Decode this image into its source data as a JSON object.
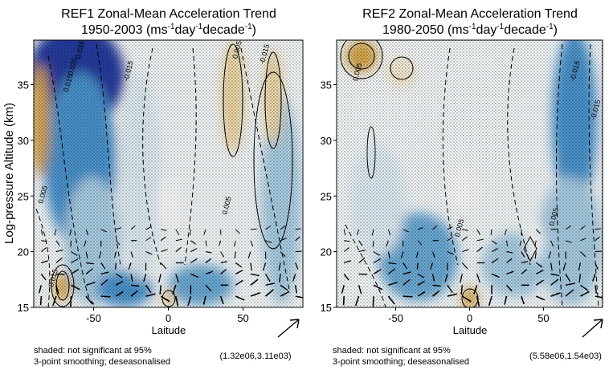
{
  "chart_data": [
    {
      "type": "heatmap",
      "title_line1": "REF1 Zonal-Mean Acceleration Trend",
      "title_line2_prefix": "1950-2003 (ms",
      "units_parts": [
        "-1",
        "day",
        "-1",
        "decade",
        "-1",
        ")"
      ],
      "xlabel": "Laitude",
      "ylabel": "Log-pressure Altitude (km)",
      "xlim": [
        -90,
        90
      ],
      "ylim": [
        15,
        39
      ],
      "xticks": [
        -50,
        0,
        50
      ],
      "xtick_labels": [
        "-50",
        "0",
        "50"
      ],
      "yticks": [
        15,
        20,
        25,
        30,
        35
      ],
      "ytick_labels": [
        "15",
        "20",
        "25",
        "30",
        "35"
      ],
      "contour_labels": [
        {
          "text": "0.005",
          "lat": -84,
          "alt": 24.3
        },
        {
          "text": "0.015",
          "lat": -67,
          "alt": 34.3
        },
        {
          "text": "0.025",
          "lat": -64,
          "alt": 35.8
        },
        {
          "text": "0.035",
          "lat": -59,
          "alt": 37.3
        },
        {
          "text": "-0.015",
          "lat": -27,
          "alt": 35.3
        },
        {
          "text": "0.005",
          "lat": 46,
          "alt": 37.3
        },
        {
          "text": "-0.015",
          "lat": 64,
          "alt": 36.8
        },
        {
          "text": "0.005",
          "lat": 39,
          "alt": 23.3
        },
        {
          "text": "0.015",
          "lat": -77,
          "alt": 16.8
        }
      ],
      "reference_arrow_label": "(1.32e06,3.11e03)",
      "notes": [
        "shaded: not significant at 95%",
        "3-point smoothing; deseasonalised"
      ]
    },
    {
      "type": "heatmap",
      "title_line1": "REF2 Zonal-Mean Acceleration Trend",
      "title_line2_prefix": "1980-2050 (ms",
      "units_parts": [
        "-1",
        "day",
        "-1",
        "decade",
        "-1",
        ")"
      ],
      "xlabel": "Laitude",
      "ylabel": "",
      "xlim": [
        -90,
        90
      ],
      "ylim": [
        15,
        39
      ],
      "xticks": [
        -50,
        0,
        50
      ],
      "xtick_labels": [
        "-50",
        "0",
        "50"
      ],
      "yticks": [
        15,
        20,
        25,
        30,
        35
      ],
      "ytick_labels": [
        "15",
        "20",
        "25",
        "30",
        "35"
      ],
      "contour_labels": [
        {
          "text": "0.005",
          "lat": -76,
          "alt": 35.3
        },
        {
          "text": "0.005",
          "lat": -7,
          "alt": 21.3
        },
        {
          "text": "0.005",
          "lat": 57,
          "alt": 22.3
        },
        {
          "text": "-0.015",
          "lat": 71,
          "alt": 35.3
        },
        {
          "text": "-0.015",
          "lat": 85,
          "alt": 31.8
        }
      ],
      "reference_arrow_label": "(5.58e06,1.54e03)",
      "notes": [
        "shaded: not significant at 95%",
        "3-point smoothing; deseasonalised"
      ]
    }
  ],
  "colors": {
    "negative_strong": "#253a9e",
    "negative_mid": "#4a93cc",
    "negative_light": "#a9cde3",
    "negative_faint": "#dfecf3",
    "positive_faint": "#f5e8cf",
    "positive_light": "#ecd39d",
    "positive_strong": "#d6a648",
    "contour": "#000000"
  },
  "icons": [
    "arrow-icon",
    "arrow-icon"
  ]
}
